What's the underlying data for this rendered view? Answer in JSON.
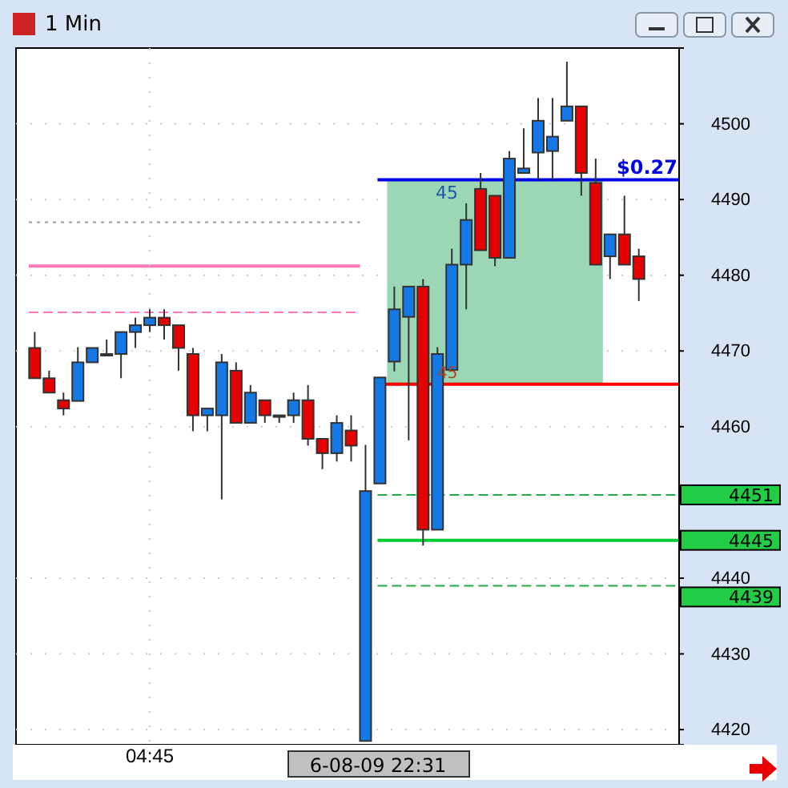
{
  "chart_data": {
    "type": "candlestick",
    "title": "1 Min",
    "categories": [
      null,
      null,
      null,
      null,
      null,
      null,
      null,
      null,
      "04:45",
      null,
      null,
      null,
      null,
      null,
      null,
      null,
      null,
      null,
      null,
      null,
      null,
      null,
      null,
      null,
      null,
      null,
      null,
      null,
      null,
      null,
      null,
      null,
      null,
      null,
      null,
      null,
      null,
      null,
      null,
      null,
      null,
      null,
      null
    ],
    "ohlc": [
      [
        4470.4,
        4472.5,
        4466.4,
        4466.4
      ],
      [
        4466.4,
        4467.4,
        4464.5,
        4464.5
      ],
      [
        4463.5,
        4464.5,
        4461.5,
        4462.4
      ],
      [
        4463.4,
        4470.5,
        4463.4,
        4468.5
      ],
      [
        4468.5,
        4470.4,
        4468.5,
        4470.4
      ],
      [
        4469.6,
        4471.5,
        4469.6,
        4469.6
      ],
      [
        4469.6,
        4472.5,
        4466.4,
        4472.5
      ],
      [
        4472.5,
        4474.4,
        4470.4,
        4473.4
      ],
      [
        4473.4,
        4475.5,
        4472.5,
        4474.4
      ],
      [
        4474.4,
        4475.5,
        4471.5,
        4473.4
      ],
      [
        4473.4,
        4473.4,
        4467.4,
        4470.4
      ],
      [
        4469.6,
        4470.4,
        4459.4,
        4461.5
      ],
      [
        4461.5,
        4462.4,
        4459.4,
        4462.4
      ],
      [
        4461.5,
        4469.6,
        4450.4,
        4468.5
      ],
      [
        4467.4,
        4468.5,
        4460.5,
        4460.5
      ],
      [
        4460.5,
        4465.5,
        4460.5,
        4464.5
      ],
      [
        4463.5,
        4463.5,
        4460.5,
        4461.5
      ],
      [
        4461.5,
        4461.5,
        4460.5,
        4461.5
      ],
      [
        4461.5,
        4464.5,
        4460.5,
        4463.5
      ],
      [
        4463.5,
        4465.5,
        4457.5,
        4458.4
      ],
      [
        4458.4,
        4458.4,
        4454.4,
        4456.5
      ],
      [
        4456.5,
        4461.5,
        4455.4,
        4460.5
      ],
      [
        4459.5,
        4461.5,
        4455.4,
        4457.5
      ],
      [
        4418.5,
        4457.6,
        4418.5,
        4451.5
      ],
      [
        4452.5,
        4466.5,
        4452.5,
        4466.5
      ],
      [
        4468.6,
        4478.5,
        4467.3,
        4475.5
      ],
      [
        4474.5,
        4478.5,
        4458.2,
        4478.5
      ],
      [
        4478.5,
        4479.5,
        4444.3,
        4446.4
      ],
      [
        4446.4,
        4470.5,
        4446.4,
        4469.6
      ],
      [
        4467.5,
        4483.5,
        4467.5,
        4481.4
      ],
      [
        4481.4,
        4489.5,
        4475.5,
        4487.3
      ],
      [
        4491.4,
        4493.5,
        4483.3,
        4483.3
      ],
      [
        4490.5,
        4490.5,
        4481.2,
        4482.3
      ],
      [
        4482.3,
        4496.4,
        4482.3,
        4495.4
      ],
      [
        4493.5,
        4499.4,
        4493.5,
        4494.1
      ],
      [
        4496.2,
        4503.4,
        4492.6,
        4500.4
      ],
      [
        4496.4,
        4503.4,
        4492.6,
        4498.3
      ],
      [
        4500.4,
        4508.2,
        4500.4,
        4502.3
      ],
      [
        4502.3,
        4502.3,
        4490.5,
        4493.5
      ],
      [
        4492.2,
        4495.4,
        4481.4,
        4481.4
      ],
      [
        4482.5,
        4485.4,
        4479.5,
        4485.4
      ],
      [
        4485.4,
        4490.5,
        4481.4,
        4481.4
      ],
      [
        4482.5,
        4483.5,
        4476.6,
        4479.5
      ]
    ],
    "colors": [
      "#e60000",
      "#e60000",
      "#e60000",
      "#1478e6",
      "#1478e6",
      "#1478e6",
      "#1478e6",
      "#1478e6",
      "#1478e6",
      "#e60000",
      "#e60000",
      "#e60000",
      "#1478e6",
      "#1478e6",
      "#e60000",
      "#1478e6",
      "#e60000",
      "#1478e6",
      "#1478e6",
      "#e60000",
      "#e60000",
      "#1478e6",
      "#e60000",
      "#1478e6",
      "#1478e6",
      "#1478e6",
      "#1478e6",
      "#e60000",
      "#1478e6",
      "#1478e6",
      "#1478e6",
      "#e60000",
      "#e60000",
      "#1478e6",
      "#1478e6",
      "#1478e6",
      "#1478e6",
      "#1478e6",
      "#e60000",
      "#e60000",
      "#1478e6",
      "#e60000",
      "#e60000"
    ],
    "ylim": [
      4418,
      4510
    ],
    "yticks": [
      4420,
      4430,
      4440,
      4460,
      4470,
      4480,
      4490,
      4500
    ],
    "grid": "y",
    "bands": [
      {
        "axis": "y",
        "from": 4465.6,
        "to": 4492.6,
        "color": "#9bd7b5"
      }
    ],
    "ref_lines": [
      {
        "axis": "y",
        "value": 4492.6,
        "color": "#0000e6",
        "line_style": "solid"
      },
      {
        "axis": "y",
        "value": 4465.6,
        "color": "#ff0000",
        "line_style": "solid"
      },
      {
        "axis": "y",
        "value": 4451,
        "label": "4451",
        "color": "#22aa44",
        "line_style": "dashed"
      },
      {
        "axis": "y",
        "value": 4445,
        "label": "4445",
        "color": "#00cc33",
        "line_style": "solid"
      },
      {
        "axis": "y",
        "value": 4439,
        "label": "4439",
        "color": "#22aa44",
        "line_style": "dashed"
      },
      {
        "axis": "y",
        "value": 4487,
        "color": "#999999",
        "line_style": "dotted"
      },
      {
        "axis": "y",
        "value": 4481.2,
        "color": "#ff77bb",
        "line_style": "solid"
      },
      {
        "axis": "y",
        "value": 4475.1,
        "color": "#ff77bb",
        "line_style": "dashed"
      }
    ],
    "annotations": [
      "6-08-09 22:31",
      "45",
      "45",
      {
        "text": "$0.27",
        "y": 4492.6
      }
    ]
  }
}
